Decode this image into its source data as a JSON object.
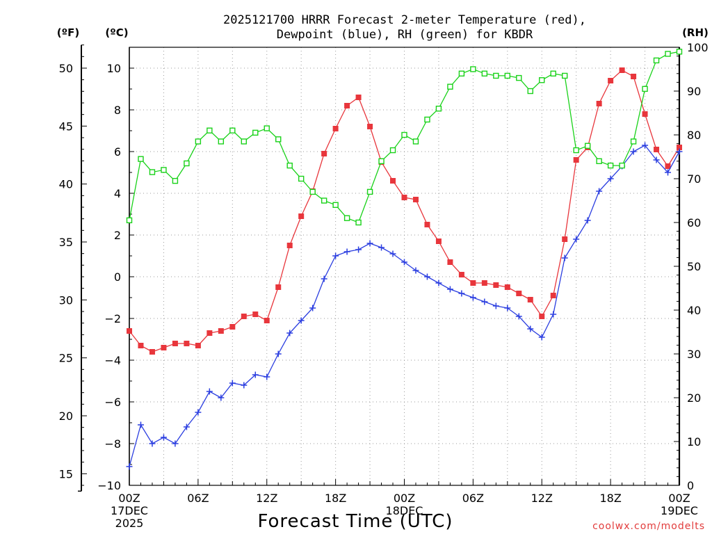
{
  "title_lines": [
    "2025121700 HRRR Forecast 2-meter Temperature (red),",
    "Dewpoint (blue), RH (green) for KBDR"
  ],
  "unit_labels": {
    "f": "(ºF)",
    "c": "(ºC)",
    "rh": "(RH)"
  },
  "credit": "coolwx.com/modelts",
  "colors": {
    "temperature": "#e8363c",
    "dewpoint": "#2b3ee0",
    "rh": "#19d219"
  },
  "chart_data": {
    "type": "line",
    "title": "2025121700 HRRR Forecast 2-meter Temperature (red), Dewpoint (blue), RH (green) for KBDR",
    "xlabel": "Forecast Time (UTC)",
    "x": [
      0,
      1,
      2,
      3,
      4,
      5,
      6,
      7,
      8,
      9,
      10,
      11,
      12,
      13,
      14,
      15,
      16,
      17,
      18,
      19,
      20,
      21,
      22,
      23,
      24,
      25,
      26,
      27,
      28,
      29,
      30,
      31,
      32,
      33,
      34,
      35,
      36,
      37,
      38,
      39,
      40,
      41,
      42,
      43,
      44,
      45,
      46,
      47,
      48
    ],
    "x_unit": "hours after 17 DEC 2025 00Z",
    "x_ticks": [
      {
        "hour": 0,
        "lines": [
          "00Z",
          "17DEC",
          "2025"
        ]
      },
      {
        "hour": 6,
        "lines": [
          "06Z"
        ]
      },
      {
        "hour": 12,
        "lines": [
          "12Z"
        ]
      },
      {
        "hour": 18,
        "lines": [
          "18Z"
        ]
      },
      {
        "hour": 24,
        "lines": [
          "00Z",
          "18DEC"
        ]
      },
      {
        "hour": 30,
        "lines": [
          "06Z"
        ]
      },
      {
        "hour": 36,
        "lines": [
          "12Z"
        ]
      },
      {
        "hour": 42,
        "lines": [
          "18Z"
        ]
      },
      {
        "hour": 48,
        "lines": [
          "00Z",
          "19DEC"
        ]
      }
    ],
    "y_left_celsius": {
      "range": [
        -10,
        11
      ],
      "ticks": [
        -10,
        -8,
        -6,
        -4,
        -2,
        0,
        2,
        4,
        6,
        8,
        10
      ]
    },
    "y_left_fahrenheit": {
      "ticks": [
        15,
        20,
        25,
        30,
        35,
        40,
        45,
        50
      ]
    },
    "y_right_rh": {
      "range": [
        0,
        100
      ],
      "ticks": [
        0,
        10,
        20,
        30,
        40,
        50,
        60,
        70,
        80,
        90,
        100
      ]
    },
    "grid": true,
    "series": [
      {
        "name": "2-meter Temperature",
        "axis": "celsius",
        "color": "#e8363c",
        "marker": "filled-square",
        "values": [
          -2.6,
          -3.3,
          -3.6,
          -3.4,
          -3.2,
          -3.2,
          -3.3,
          -2.7,
          -2.6,
          -2.4,
          -1.9,
          -1.8,
          -2.1,
          -0.5,
          1.5,
          2.9,
          4.1,
          5.9,
          7.1,
          8.2,
          8.6,
          7.2,
          5.5,
          4.6,
          3.8,
          3.7,
          2.5,
          1.7,
          0.7,
          0.1,
          -0.3,
          -0.3,
          -0.4,
          -0.5,
          -0.8,
          -1.1,
          -1.9,
          -0.9,
          1.8,
          5.6,
          6.2,
          8.3,
          9.4,
          9.9,
          9.6,
          7.8,
          6.1,
          5.3,
          6.2
        ]
      },
      {
        "name": "Dewpoint",
        "axis": "celsius",
        "color": "#2b3ee0",
        "marker": "plus",
        "values": [
          -9.1,
          -7.1,
          -8.0,
          -7.7,
          -8.0,
          -7.2,
          -6.5,
          -5.5,
          -5.8,
          -5.1,
          -5.2,
          -4.7,
          -4.8,
          -3.7,
          -2.7,
          -2.1,
          -1.5,
          -0.1,
          1.0,
          1.2,
          1.3,
          1.6,
          1.4,
          1.1,
          0.7,
          0.3,
          0.0,
          -0.3,
          -0.6,
          -0.8,
          -1.0,
          -1.2,
          -1.4,
          -1.5,
          -1.9,
          -2.5,
          -2.9,
          -1.8,
          0.9,
          1.8,
          2.7,
          4.1,
          4.7,
          5.3,
          6.0,
          6.3,
          5.6,
          5.0,
          6.0
        ]
      },
      {
        "name": "RH",
        "axis": "rh",
        "color": "#19d219",
        "marker": "open-square",
        "values": [
          60.5,
          74.5,
          71.5,
          72,
          69.5,
          73.5,
          78.5,
          81,
          78.5,
          81,
          78.5,
          80.5,
          81.5,
          79,
          73,
          70,
          67,
          65,
          64,
          61,
          60,
          67,
          74,
          76.5,
          80,
          78.5,
          83.5,
          86,
          91,
          94,
          95,
          94,
          93.5,
          93.5,
          93,
          90,
          92.5,
          94,
          93.5,
          76.5,
          77.5,
          74,
          73,
          73,
          78.5,
          90.5,
          97,
          98.5,
          99
        ]
      }
    ]
  }
}
